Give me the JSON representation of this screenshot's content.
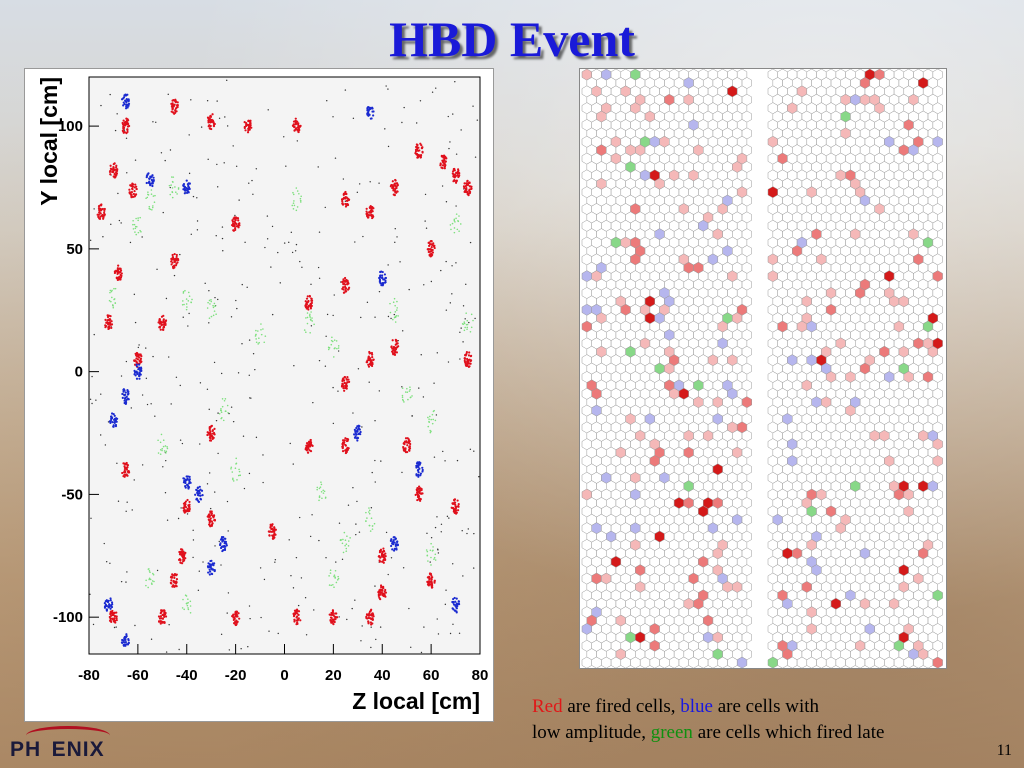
{
  "slide": {
    "title": "HBD Event",
    "page_number": "11",
    "logo_text": "PH  ENIX"
  },
  "caption": {
    "red_word": "Red",
    "part1": " are fired cells, ",
    "blue_word": "blue",
    "part2": " are cells with",
    "part3": "low amplitude, ",
    "green_word": "green",
    "part4": " are cells which fired late"
  },
  "colors": {
    "fired": "#e0101c",
    "low_amplitude": "#1a2ad0",
    "late": "#7ee07e",
    "hex_red_light": "#f5b8b8",
    "hex_red_mid": "#ec7a7a",
    "hex_red_dark": "#d41a1a",
    "hex_blue": "#b6b6ee",
    "hex_green": "#88d888"
  },
  "chart_data": [
    {
      "type": "scatter",
      "xlabel": "Z local [cm]",
      "ylabel": "Y local [cm]",
      "xlim": [
        -80,
        80
      ],
      "ylim": [
        -115,
        120
      ],
      "xticks": [
        "-80",
        "-60",
        "-40",
        "-20",
        "0",
        "20",
        "40",
        "60",
        "80"
      ],
      "yticks": [
        "100",
        "50",
        "0",
        "-50",
        "-100"
      ],
      "grid": false,
      "series": [
        {
          "color_key": "fired",
          "clusters": [
            [
              -65,
              100
            ],
            [
              -45,
              108
            ],
            [
              -30,
              102
            ],
            [
              -70,
              82
            ],
            [
              -62,
              74
            ],
            [
              -75,
              65
            ],
            [
              -68,
              40
            ],
            [
              -45,
              45
            ],
            [
              -72,
              20
            ],
            [
              -50,
              20
            ],
            [
              -60,
              5
            ],
            [
              -65,
              -40
            ],
            [
              -40,
              -55
            ],
            [
              -30,
              -25
            ],
            [
              -30,
              -60
            ],
            [
              -20,
              60
            ],
            [
              -20,
              -100
            ],
            [
              -50,
              -100
            ],
            [
              -70,
              -100
            ],
            [
              -45,
              -85
            ],
            [
              -42,
              -75
            ],
            [
              -5,
              -65
            ],
            [
              5,
              -100
            ],
            [
              5,
              100
            ],
            [
              25,
              35
            ],
            [
              10,
              28
            ],
            [
              25,
              -5
            ],
            [
              35,
              5
            ],
            [
              45,
              10
            ],
            [
              50,
              -30
            ],
            [
              65,
              85
            ],
            [
              70,
              80
            ],
            [
              75,
              75
            ],
            [
              55,
              90
            ],
            [
              45,
              75
            ],
            [
              25,
              70
            ],
            [
              35,
              65
            ],
            [
              40,
              -75
            ],
            [
              40,
              -90
            ],
            [
              60,
              -85
            ],
            [
              70,
              -55
            ],
            [
              75,
              5
            ],
            [
              60,
              50
            ],
            [
              10,
              -30
            ],
            [
              20,
              -100
            ],
            [
              55,
              -50
            ],
            [
              25,
              -30
            ],
            [
              -15,
              100
            ],
            [
              35,
              -100
            ]
          ]
        },
        {
          "color_key": "low_amplitude",
          "clusters": [
            [
              -65,
              110
            ],
            [
              -55,
              78
            ],
            [
              -40,
              75
            ],
            [
              -60,
              0
            ],
            [
              -65,
              -10
            ],
            [
              -70,
              -20
            ],
            [
              -40,
              -45
            ],
            [
              -35,
              -50
            ],
            [
              -25,
              -70
            ],
            [
              -30,
              -80
            ],
            [
              35,
              105
            ],
            [
              40,
              38
            ],
            [
              55,
              -40
            ],
            [
              45,
              -70
            ],
            [
              -65,
              -110
            ],
            [
              -72,
              -95
            ],
            [
              30,
              -25
            ],
            [
              70,
              -95
            ]
          ]
        },
        {
          "color_key": "late",
          "clusters": [
            [
              -55,
              70
            ],
            [
              -60,
              60
            ],
            [
              -40,
              30
            ],
            [
              -30,
              25
            ],
            [
              -10,
              15
            ],
            [
              -25,
              -15
            ],
            [
              10,
              20
            ],
            [
              20,
              10
            ],
            [
              45,
              25
            ],
            [
              50,
              -10
            ],
            [
              60,
              -20
            ],
            [
              -50,
              -30
            ],
            [
              -20,
              -40
            ],
            [
              15,
              -50
            ],
            [
              35,
              -60
            ],
            [
              -55,
              -85
            ],
            [
              -40,
              -95
            ],
            [
              25,
              -70
            ],
            [
              60,
              -75
            ],
            [
              70,
              60
            ],
            [
              5,
              70
            ],
            [
              -70,
              30
            ],
            [
              20,
              -85
            ],
            [
              75,
              20
            ],
            [
              -45,
              75
            ]
          ]
        }
      ]
    },
    {
      "type": "heatmap",
      "cell_shape": "hexagon",
      "panels": 2,
      "categories": [
        "fired",
        "low_amplitude",
        "late"
      ]
    }
  ]
}
